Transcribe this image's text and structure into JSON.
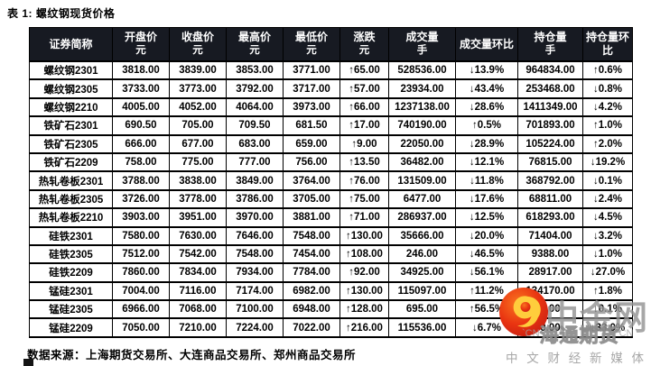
{
  "title": "表 1: 螺纹钢现货价格",
  "table": {
    "headers": [
      {
        "label": "证券简称",
        "unit": ""
      },
      {
        "label": "开盘价",
        "unit": "元"
      },
      {
        "label": "收盘价",
        "unit": "元"
      },
      {
        "label": "最高价",
        "unit": "元"
      },
      {
        "label": "最低价",
        "unit": "元"
      },
      {
        "label": "涨跌",
        "unit": "元"
      },
      {
        "label": "成交量",
        "unit": "手"
      },
      {
        "label": "成交量环比",
        "unit": ""
      },
      {
        "label": "持仓量",
        "unit": "手"
      },
      {
        "label": "持仓量环比",
        "unit": ""
      }
    ],
    "rows": [
      {
        "name": "螺纹钢2301",
        "open": "3818.00",
        "close": "3839.00",
        "high": "3853.00",
        "low": "3771.00",
        "change": {
          "dir": "up",
          "text": "65.00"
        },
        "volume": "528536.00",
        "volume_mom": {
          "dir": "down",
          "text": "13.9%"
        },
        "oi": "964834.00",
        "oi_mom": {
          "dir": "up",
          "text": "0.6%"
        }
      },
      {
        "name": "螺纹钢2305",
        "open": "3733.00",
        "close": "3773.00",
        "high": "3792.00",
        "low": "3717.00",
        "change": {
          "dir": "up",
          "text": "57.00"
        },
        "volume": "23934.00",
        "volume_mom": {
          "dir": "down",
          "text": "43.4%"
        },
        "oi": "253468.00",
        "oi_mom": {
          "dir": "down",
          "text": "0.8%"
        }
      },
      {
        "name": "螺纹钢2210",
        "open": "4005.00",
        "close": "4052.00",
        "high": "4064.00",
        "low": "3973.00",
        "change": {
          "dir": "up",
          "text": "66.00"
        },
        "volume": "1237138.00",
        "volume_mom": {
          "dir": "down",
          "text": "28.6%"
        },
        "oi": "1411349.00",
        "oi_mom": {
          "dir": "down",
          "text": "4.2%"
        }
      },
      {
        "name": "铁矿石2301",
        "open": "690.50",
        "close": "705.00",
        "high": "709.50",
        "low": "681.50",
        "change": {
          "dir": "up",
          "text": "17.00"
        },
        "volume": "740190.00",
        "volume_mom": {
          "dir": "up",
          "text": "0.5%"
        },
        "oi": "701893.00",
        "oi_mom": {
          "dir": "up",
          "text": "1.0%"
        }
      },
      {
        "name": "铁矿石2305",
        "open": "666.00",
        "close": "677.00",
        "high": "683.00",
        "low": "659.00",
        "change": {
          "dir": "up",
          "text": "9.00"
        },
        "volume": "22050.00",
        "volume_mom": {
          "dir": "down",
          "text": "28.9%"
        },
        "oi": "105224.00",
        "oi_mom": {
          "dir": "up",
          "text": "2.0%"
        }
      },
      {
        "name": "铁矿石2209",
        "open": "758.00",
        "close": "775.00",
        "high": "777.00",
        "low": "756.00",
        "change": {
          "dir": "up",
          "text": "13.50"
        },
        "volume": "36482.00",
        "volume_mom": {
          "dir": "down",
          "text": "12.1%"
        },
        "oi": "76815.00",
        "oi_mom": {
          "dir": "down",
          "text": "19.2%"
        }
      },
      {
        "name": "热轧卷板2301",
        "open": "3788.00",
        "close": "3838.00",
        "high": "3849.00",
        "low": "3764.00",
        "change": {
          "dir": "up",
          "text": "76.00"
        },
        "volume": "131509.00",
        "volume_mom": {
          "dir": "down",
          "text": "11.8%"
        },
        "oi": "368792.00",
        "oi_mom": {
          "dir": "down",
          "text": "0.1%"
        }
      },
      {
        "name": "热轧卷板2305",
        "open": "3726.00",
        "close": "3778.00",
        "high": "3786.00",
        "low": "3705.00",
        "change": {
          "dir": "up",
          "text": "75.00"
        },
        "volume": "6477.00",
        "volume_mom": {
          "dir": "down",
          "text": "17.6%"
        },
        "oi": "68811.00",
        "oi_mom": {
          "dir": "down",
          "text": "2.4%"
        }
      },
      {
        "name": "热轧卷板2210",
        "open": "3903.00",
        "close": "3951.00",
        "high": "3970.00",
        "low": "3881.00",
        "change": {
          "dir": "up",
          "text": "71.00"
        },
        "volume": "286937.00",
        "volume_mom": {
          "dir": "down",
          "text": "12.5%"
        },
        "oi": "618293.00",
        "oi_mom": {
          "dir": "down",
          "text": "4.5%"
        }
      },
      {
        "name": "硅铁2301",
        "open": "7580.00",
        "close": "7630.00",
        "high": "7646.00",
        "low": "7548.00",
        "change": {
          "dir": "up",
          "text": "130.00"
        },
        "volume": "35666.00",
        "volume_mom": {
          "dir": "down",
          "text": "20.0%"
        },
        "oi": "71404.00",
        "oi_mom": {
          "dir": "down",
          "text": "3.2%"
        }
      },
      {
        "name": "硅铁2305",
        "open": "7512.00",
        "close": "7542.00",
        "high": "7548.00",
        "low": "7454.00",
        "change": {
          "dir": "up",
          "text": "108.00"
        },
        "volume": "246.00",
        "volume_mom": {
          "dir": "down",
          "text": "46.5%"
        },
        "oi": "9388.00",
        "oi_mom": {
          "dir": "down",
          "text": "1.0%"
        }
      },
      {
        "name": "硅铁2209",
        "open": "7860.00",
        "close": "7834.00",
        "high": "7934.00",
        "low": "7784.00",
        "change": {
          "dir": "up",
          "text": "92.00"
        },
        "volume": "34925.00",
        "volume_mom": {
          "dir": "down",
          "text": "56.1%"
        },
        "oi": "28917.00",
        "oi_mom": {
          "dir": "down",
          "text": "27.0%"
        }
      },
      {
        "name": "锰硅2301",
        "open": "7004.00",
        "close": "7116.00",
        "high": "7174.00",
        "low": "6982.00",
        "change": {
          "dir": "up",
          "text": "130.00"
        },
        "volume": "115097.00",
        "volume_mom": {
          "dir": "up",
          "text": "11.2%"
        },
        "oi": "134170.00",
        "oi_mom": {
          "dir": "up",
          "text": "1.8%"
        }
      },
      {
        "name": "锰硅2305",
        "open": "6966.00",
        "close": "7068.00",
        "high": "7100.00",
        "low": "6948.00",
        "change": {
          "dir": "up",
          "text": "128.00"
        },
        "volume": "695.00",
        "volume_mom": {
          "dir": "up",
          "text": "56.5%"
        },
        "oi": "9.00",
        "oi_mom": {
          "dir": "down",
          "text": "0.1%"
        }
      },
      {
        "name": "锰硅2209",
        "open": "7050.00",
        "close": "7210.00",
        "high": "7224.00",
        "low": "7022.00",
        "change": {
          "dir": "up",
          "text": "216.00"
        },
        "volume": "115536.00",
        "volume_mom": {
          "dir": "down",
          "text": "6.7%"
        },
        "oi": "0.00",
        "oi_mom": {
          "dir": "down",
          "text": "33.0%"
        }
      }
    ]
  },
  "footer": "数据来源：上海期货交易所、大连商品交易所、郑州商品交易所",
  "watermark": {
    "brand": "中金网",
    "sub_left": "`CN",
    "sub_brand": "海通期货",
    "sub_right": "CN",
    "tagline": "中 文 财 经 新 媒 体"
  },
  "colors": {
    "up_red": "#fb1717",
    "down_green": "#0cd245",
    "header_bg": "#171a22"
  }
}
